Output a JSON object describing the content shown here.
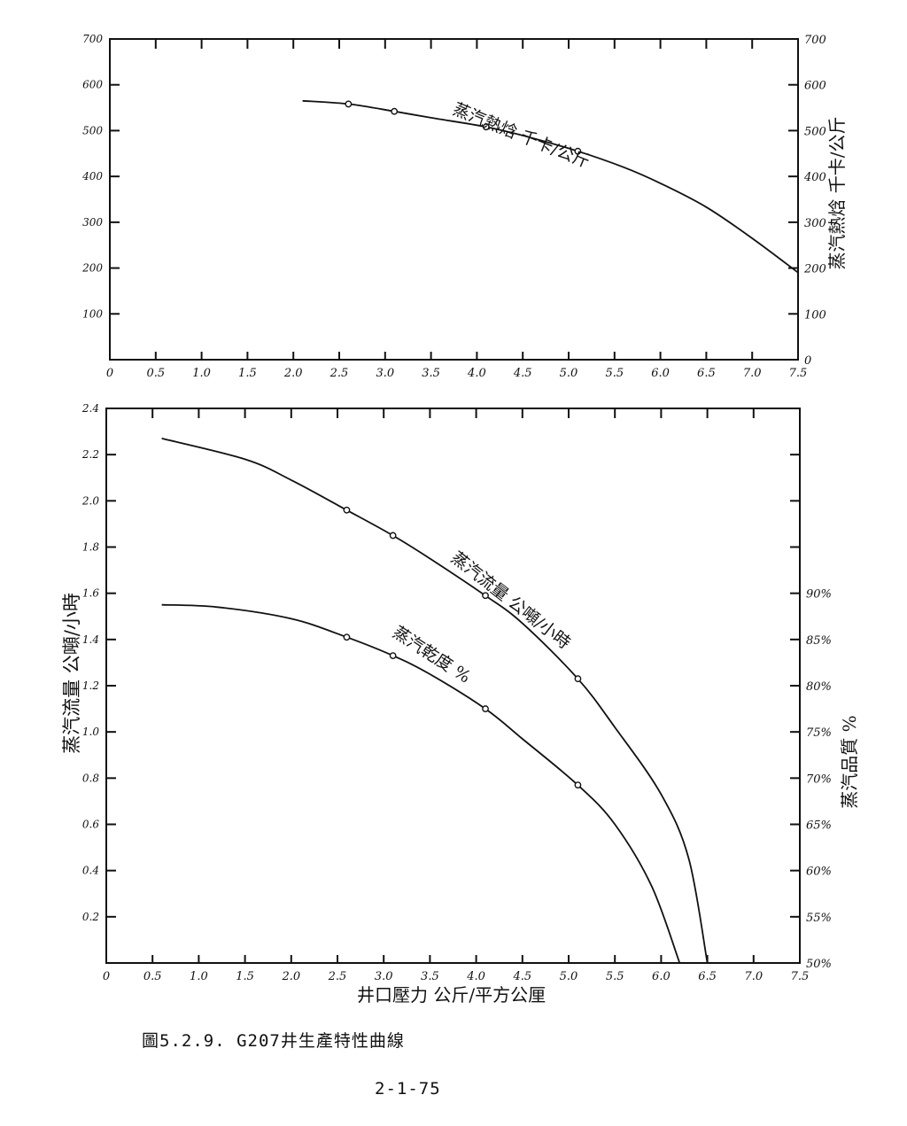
{
  "caption": "圖5.2.9. G207井生產特性曲線",
  "page_number": "2-1-75",
  "colors": {
    "ink": "#111111",
    "paper": "#ffffff"
  },
  "chart_data": [
    {
      "type": "line",
      "xlim": [
        0,
        7.5
      ],
      "ylim": [
        0,
        700
      ],
      "x_ticks": [
        "0",
        "0.5",
        "1.0",
        "1.5",
        "2.0",
        "2.5",
        "3.0",
        "3.5",
        "4.0",
        "4.5",
        "5.0",
        "5.5",
        "6.0",
        "6.5",
        "7.0",
        "7.5"
      ],
      "y_ticks_left": [
        "100",
        "200",
        "300",
        "400",
        "500",
        "600",
        "700"
      ],
      "y_ticks_right": [
        "0",
        "100",
        "200",
        "300",
        "400",
        "500",
        "600",
        "700"
      ],
      "ylabel_right": "蒸汽熱焓 千卡/公斤",
      "grid": false,
      "series": [
        {
          "name": "蒸汽熱焓 千卡/公斤",
          "curve": [
            [
              2.1,
              565
            ],
            [
              2.6,
              558
            ],
            [
              3.1,
              542
            ],
            [
              3.5,
              528
            ],
            [
              4.1,
              508
            ],
            [
              4.6,
              484
            ],
            [
              5.1,
              455
            ],
            [
              5.6,
              420
            ],
            [
              6.0,
              385
            ],
            [
              6.5,
              333
            ],
            [
              7.0,
              265
            ],
            [
              7.5,
              190
            ]
          ],
          "markers": [
            [
              2.6,
              558
            ],
            [
              3.1,
              542
            ],
            [
              4.1,
              508
            ],
            [
              5.1,
              455
            ]
          ]
        }
      ]
    },
    {
      "type": "line",
      "xlim": [
        0,
        7.5
      ],
      "ylim": [
        0,
        2.4
      ],
      "x_ticks": [
        "0",
        "0.5",
        "1.0",
        "1.5",
        "2.0",
        "2.5",
        "3.0",
        "3.5",
        "4.0",
        "4.5",
        "5.0",
        "5.5",
        "6.0",
        "6.5",
        "7.0",
        "7.5"
      ],
      "y_ticks_left": [
        "0.2",
        "0.4",
        "0.6",
        "0.8",
        "1.0",
        "1.2",
        "1.4",
        "1.6",
        "1.8",
        "2.0",
        "2.2",
        "2.4"
      ],
      "y_ticks_right": [
        "50%",
        "55%",
        "60%",
        "65%",
        "70%",
        "75%",
        "80%",
        "85%",
        "90%"
      ],
      "xlabel": "井口壓力 公斤/平方公厘",
      "ylabel_left": "蒸汽流量 公噸/小時",
      "ylabel_right": "蒸汽品質 %",
      "grid": false,
      "series": [
        {
          "name": "蒸汽流量 公噸/小時",
          "axis": "left",
          "curve": [
            [
              0.6,
              2.27
            ],
            [
              1.5,
              2.18
            ],
            [
              2.0,
              2.09
            ],
            [
              2.6,
              1.96
            ],
            [
              3.1,
              1.85
            ],
            [
              3.5,
              1.75
            ],
            [
              4.1,
              1.59
            ],
            [
              4.5,
              1.47
            ],
            [
              5.1,
              1.23
            ],
            [
              5.5,
              1.02
            ],
            [
              6.0,
              0.73
            ],
            [
              6.3,
              0.45
            ],
            [
              6.5,
              0.0
            ]
          ],
          "markers": [
            [
              2.6,
              1.96
            ],
            [
              3.1,
              1.85
            ],
            [
              4.1,
              1.59
            ],
            [
              5.1,
              1.23
            ]
          ]
        },
        {
          "name": "蒸汽乾度 %",
          "axis": "left",
          "curve": [
            [
              0.6,
              1.55
            ],
            [
              1.2,
              1.54
            ],
            [
              2.0,
              1.49
            ],
            [
              2.6,
              1.41
            ],
            [
              3.1,
              1.33
            ],
            [
              3.5,
              1.25
            ],
            [
              4.1,
              1.1
            ],
            [
              4.5,
              0.97
            ],
            [
              5.1,
              0.77
            ],
            [
              5.5,
              0.6
            ],
            [
              5.9,
              0.33
            ],
            [
              6.2,
              0.0
            ]
          ],
          "markers": [
            [
              2.6,
              1.41
            ],
            [
              3.1,
              1.33
            ],
            [
              4.1,
              1.1
            ],
            [
              5.1,
              0.77
            ]
          ]
        }
      ]
    }
  ]
}
